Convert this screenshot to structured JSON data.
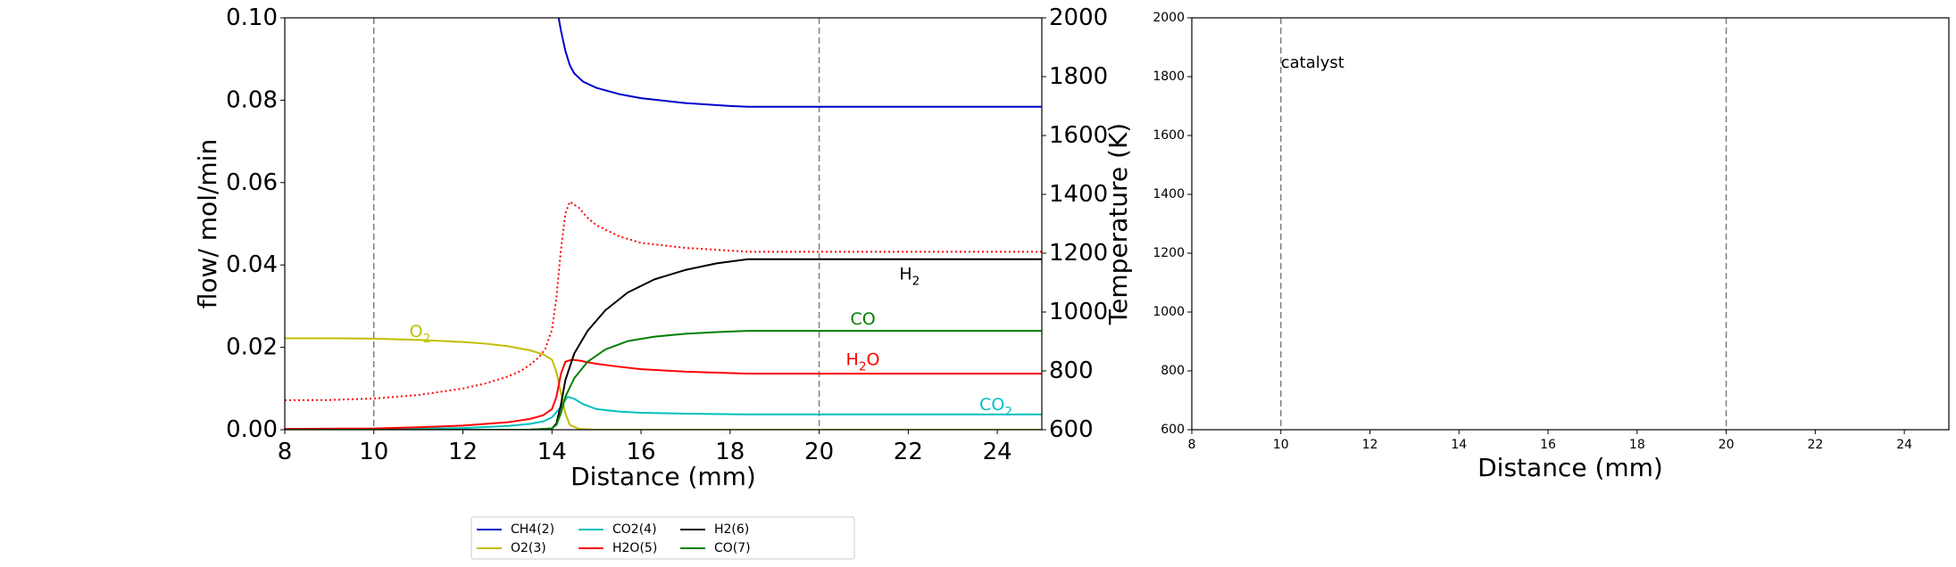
{
  "colors": {
    "ch4": "#0000cc",
    "o2": "#bfbf00",
    "co2": "#00bfbf",
    "h2o": "#ff0000",
    "h2": "#000000",
    "co": "#008000",
    "temperature": "#ff0000",
    "catalyst_lines": "#808080"
  },
  "chart_data": [
    {
      "type": "line",
      "xlabel": "Distance (mm)",
      "ylabel": "flow/ mol/min",
      "y2label": "Temperature (K)",
      "xlim": [
        8,
        25
      ],
      "ylim": [
        0,
        0.1
      ],
      "y2lim": [
        600,
        2000
      ],
      "grid": false,
      "legend_position": "bottom-center",
      "x_ticks": [
        "8",
        "10",
        "12",
        "14",
        "16",
        "18",
        "20",
        "22",
        "24"
      ],
      "y_ticks": [
        "0.00",
        "0.02",
        "0.04",
        "0.06",
        "0.08",
        "0.10"
      ],
      "y2_ticks": [
        "600",
        "800",
        "1000",
        "1200",
        "1400",
        "1600",
        "1800",
        "2000"
      ],
      "catalyst_bounds": [
        10,
        20
      ],
      "annotations": [
        {
          "key": "o2",
          "base": "O",
          "sub": "2",
          "x": 10.8,
          "y": 0.0225
        },
        {
          "key": "h2",
          "base": "H",
          "sub": "2",
          "x": 21.8,
          "y": 0.0365
        },
        {
          "key": "co",
          "base": "CO",
          "sub": "",
          "x": 20.7,
          "y": 0.0255
        },
        {
          "key": "h2o",
          "base": "H",
          "sub": "2",
          "tail": "O",
          "x": 20.6,
          "y": 0.0157
        },
        {
          "key": "co2",
          "base": "CO",
          "sub": "2",
          "x": 23.6,
          "y": 0.0048
        }
      ],
      "series": [
        {
          "key": "ch4",
          "name": "CH4(2)",
          "axis": "left",
          "style": "solid",
          "x": [
            14.15,
            14.2,
            14.3,
            14.4,
            14.5,
            14.7,
            15.0,
            15.5,
            16.0,
            17.0,
            18.0,
            18.4,
            20.0,
            22.0,
            25.0
          ],
          "y": [
            0.1,
            0.097,
            0.092,
            0.0885,
            0.0865,
            0.0845,
            0.083,
            0.0815,
            0.0805,
            0.0793,
            0.0786,
            0.0784,
            0.0784,
            0.0784,
            0.0784
          ]
        },
        {
          "key": "o2",
          "name": "O2(3)",
          "axis": "left",
          "style": "solid",
          "x": [
            8,
            9,
            10,
            11,
            12,
            12.5,
            13,
            13.5,
            13.8,
            14.0,
            14.1,
            14.2,
            14.3,
            14.4,
            14.6,
            15,
            20,
            25
          ],
          "y": [
            0.0222,
            0.0222,
            0.0221,
            0.0218,
            0.0213,
            0.0209,
            0.0203,
            0.0193,
            0.0183,
            0.017,
            0.014,
            0.009,
            0.004,
            0.0012,
            0.0002,
            0.0,
            0.0,
            0.0
          ]
        },
        {
          "key": "co2",
          "name": "CO2(4)",
          "axis": "left",
          "style": "solid",
          "x": [
            8,
            10,
            12,
            13,
            13.5,
            13.8,
            14.0,
            14.2,
            14.35,
            14.5,
            14.7,
            15.0,
            15.5,
            16.0,
            17.0,
            18.4,
            20,
            25
          ],
          "y": [
            0.0,
            0.0001,
            0.0004,
            0.0009,
            0.0014,
            0.002,
            0.003,
            0.0055,
            0.008,
            0.0075,
            0.0062,
            0.005,
            0.0044,
            0.0041,
            0.0039,
            0.0037,
            0.0037,
            0.0037
          ]
        },
        {
          "key": "h2o",
          "name": "H2O(5)",
          "axis": "left",
          "style": "solid",
          "x": [
            8,
            10,
            11,
            12,
            13,
            13.5,
            13.8,
            14.0,
            14.1,
            14.2,
            14.3,
            14.45,
            14.6,
            15.0,
            15.5,
            16.0,
            17.0,
            18.4,
            20,
            25
          ],
          "y": [
            0.0002,
            0.0003,
            0.0006,
            0.001,
            0.0018,
            0.0026,
            0.0035,
            0.005,
            0.008,
            0.0135,
            0.0165,
            0.017,
            0.0168,
            0.016,
            0.0153,
            0.0147,
            0.0141,
            0.0136,
            0.0136,
            0.0136
          ]
        },
        {
          "key": "h2",
          "name": "H2(6)",
          "axis": "left",
          "style": "solid",
          "x": [
            8,
            13.5,
            14.0,
            14.1,
            14.2,
            14.3,
            14.5,
            14.8,
            15.2,
            15.7,
            16.3,
            17.0,
            17.7,
            18.4,
            20,
            25
          ],
          "y": [
            0.0,
            0.0,
            0.0003,
            0.0015,
            0.006,
            0.012,
            0.0185,
            0.024,
            0.029,
            0.0333,
            0.0365,
            0.0388,
            0.0404,
            0.0414,
            0.0414,
            0.0414
          ]
        },
        {
          "key": "co",
          "name": "CO(7)",
          "axis": "left",
          "style": "solid",
          "x": [
            8,
            13.5,
            14.0,
            14.1,
            14.2,
            14.3,
            14.5,
            14.8,
            15.2,
            15.7,
            16.3,
            17.0,
            17.7,
            18.4,
            20,
            25
          ],
          "y": [
            0.0,
            0.0,
            0.0003,
            0.0012,
            0.004,
            0.008,
            0.0125,
            0.0165,
            0.0195,
            0.0215,
            0.0226,
            0.0233,
            0.0237,
            0.024,
            0.024,
            0.024
          ]
        },
        {
          "key": "temperature",
          "name": "",
          "axis": "right",
          "style": "dotted",
          "x": [
            8,
            9,
            10,
            11,
            12,
            12.5,
            13,
            13.3,
            13.5,
            13.7,
            13.85,
            14.0,
            14.1,
            14.2,
            14.3,
            14.4,
            14.6,
            14.8,
            15.0,
            15.5,
            16.0,
            17.0,
            18.4,
            20,
            25
          ],
          "y": [
            700,
            701,
            706,
            718,
            740,
            757,
            780,
            800,
            820,
            845,
            875,
            940,
            1050,
            1210,
            1335,
            1375,
            1355,
            1320,
            1295,
            1258,
            1235,
            1218,
            1205,
            1205,
            1205
          ]
        }
      ]
    },
    {
      "type": "line",
      "xlabel": "Distance (mm)",
      "ylabel": "",
      "xlim": [
        8,
        25
      ],
      "ylim": [
        600,
        2000
      ],
      "grid": false,
      "x_ticks": [
        "8",
        "10",
        "12",
        "14",
        "16",
        "18",
        "20",
        "22",
        "24"
      ],
      "y_ticks": [
        "600",
        "800",
        "1000",
        "1200",
        "1400",
        "1600",
        "1800",
        "2000"
      ],
      "catalyst_bounds": [
        10,
        20
      ],
      "annotations": [
        {
          "text": "catalyst",
          "x": 10,
          "y": 1830
        }
      ],
      "series": []
    }
  ]
}
